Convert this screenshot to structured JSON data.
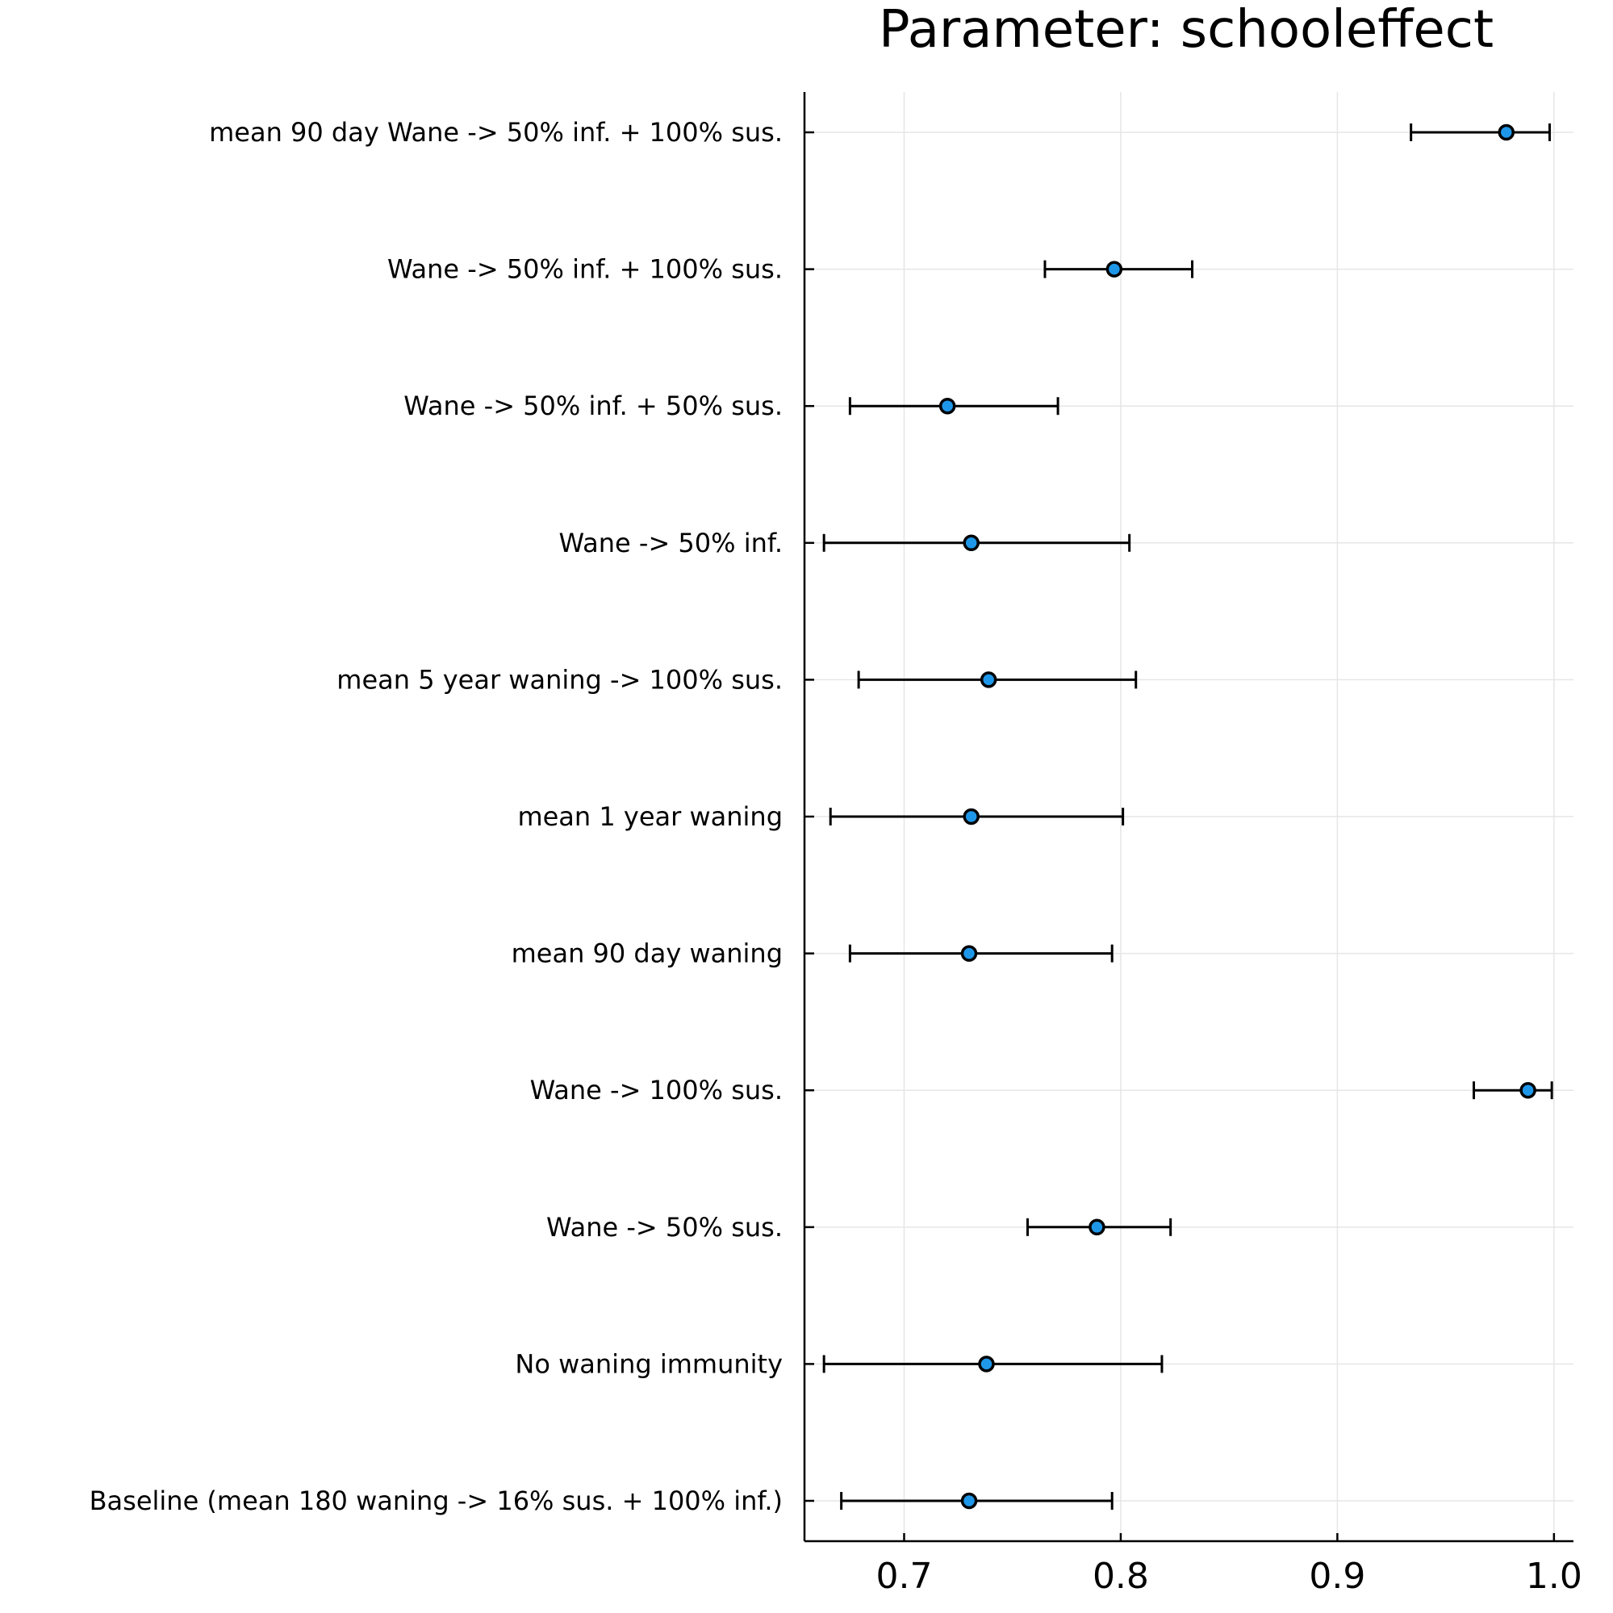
{
  "chart_data": {
    "type": "scatter",
    "title": "Parameter: schooleffect",
    "xlabel": "",
    "ylabel": "",
    "xlim": [
      0.654,
      1.009
    ],
    "xticks": [
      0.7,
      0.8,
      0.9,
      1.0
    ],
    "xtick_labels": [
      "0.7",
      "0.8",
      "0.9",
      "1.0"
    ],
    "grid": true,
    "marker_color": "#1f97e8",
    "categories": [
      "mean 90 day Wane -> 50% inf. + 100% sus.",
      "Wane -> 50% inf. + 100% sus.",
      "Wane -> 50% inf. + 50% sus.",
      "Wane -> 50% inf.",
      "mean 5 year waning -> 100% sus.",
      "mean 1 year waning",
      "mean 90 day waning",
      "Wane -> 100% sus.",
      "Wane -> 50% sus.",
      "No waning immunity",
      "Baseline (mean 180 waning -> 16% sus. + 100% inf.)"
    ],
    "values": [
      0.978,
      0.797,
      0.72,
      0.731,
      0.739,
      0.731,
      0.73,
      0.988,
      0.789,
      0.738,
      0.73
    ],
    "lower": [
      0.934,
      0.765,
      0.675,
      0.663,
      0.679,
      0.666,
      0.675,
      0.963,
      0.757,
      0.663,
      0.671
    ],
    "upper": [
      0.998,
      0.833,
      0.771,
      0.804,
      0.807,
      0.801,
      0.796,
      0.999,
      0.823,
      0.819,
      0.796
    ]
  }
}
